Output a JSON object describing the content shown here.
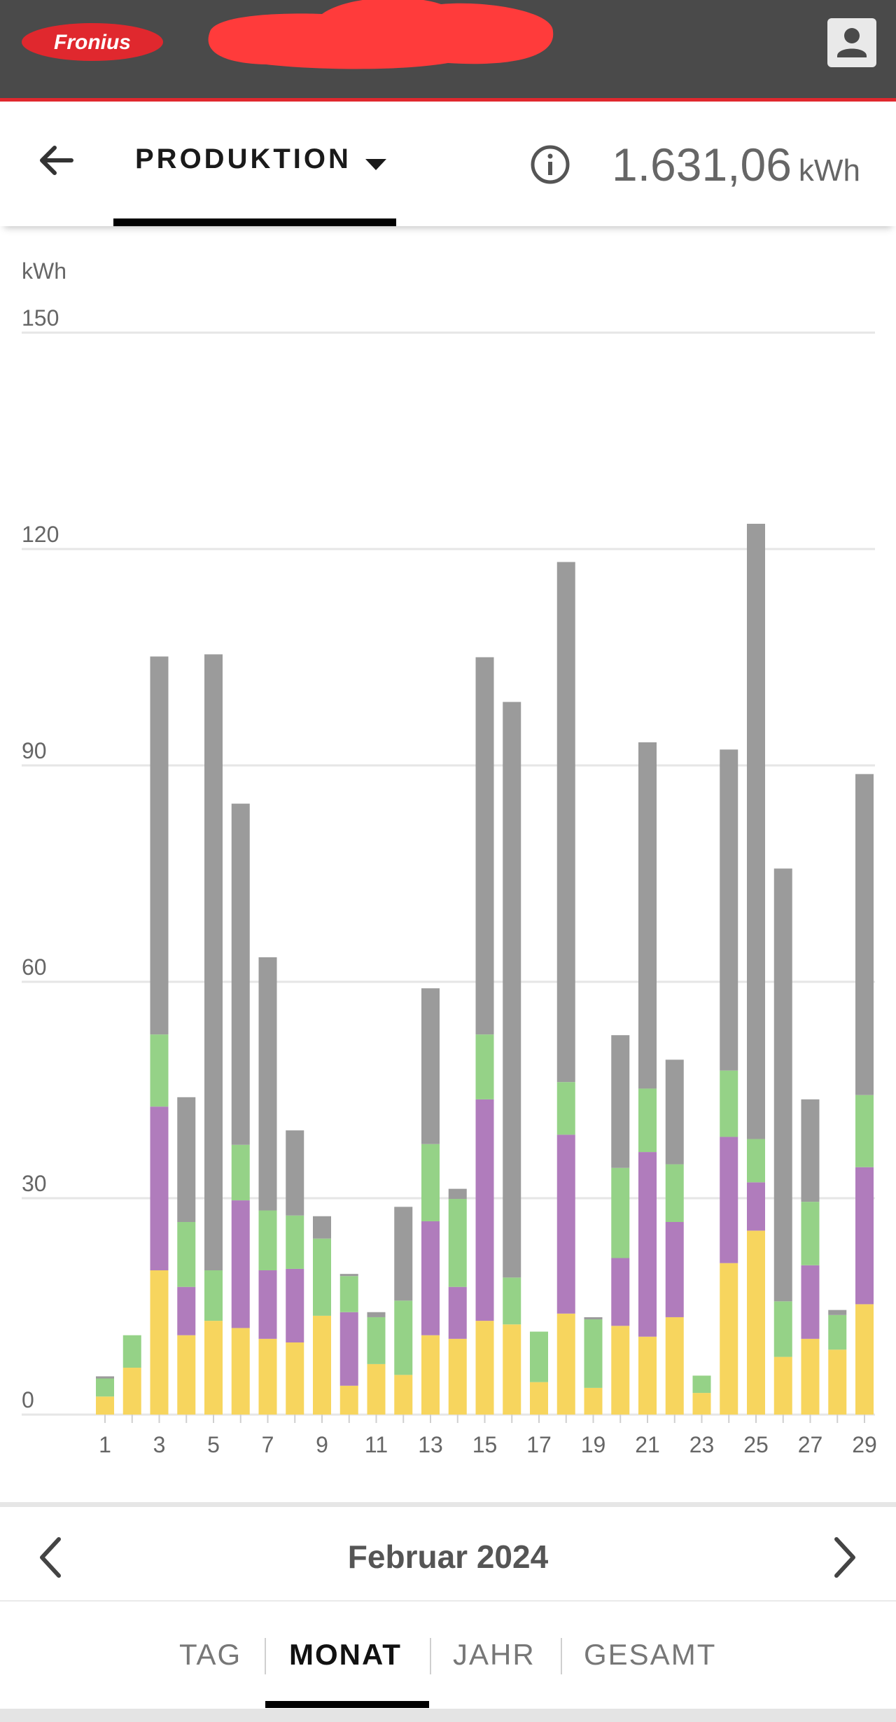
{
  "app": {
    "logo_text": "Fronius",
    "user_icon": "user-icon",
    "back_icon": "arrow-left-icon",
    "info_icon": "info-circle-icon"
  },
  "header": {
    "tab_label": "PRODUKTION",
    "dropdown_icon": "caret-down-icon",
    "total_value": "1.631,06",
    "total_unit": "kWh"
  },
  "chart_data": {
    "type": "bar",
    "stacked": true,
    "ylabel": "kWh",
    "ylim": [
      0,
      150
    ],
    "yticks": [
      0,
      30,
      60,
      90,
      120,
      150
    ],
    "categories": [
      "1",
      "2",
      "3",
      "4",
      "5",
      "6",
      "7",
      "8",
      "9",
      "10",
      "11",
      "12",
      "13",
      "14",
      "15",
      "16",
      "17",
      "18",
      "19",
      "20",
      "21",
      "22",
      "23",
      "24",
      "25",
      "26",
      "27",
      "28",
      "29"
    ],
    "xtick_labels": [
      "1",
      "3",
      "5",
      "7",
      "9",
      "11",
      "13",
      "15",
      "17",
      "19",
      "21",
      "23",
      "25",
      "27",
      "29"
    ],
    "grid": true,
    "series": [
      {
        "color": "#f7d55e",
        "values": [
          2.5,
          6.5,
          20,
          11,
          13,
          12,
          10.5,
          10,
          13.7,
          4,
          7,
          5.5,
          11,
          10.5,
          13,
          12.5,
          4.5,
          14,
          3.7,
          12.3,
          10.8,
          13.5,
          3,
          21,
          25.5,
          8,
          10.5,
          9,
          15.3
        ]
      },
      {
        "color": "#b07cbc",
        "values": [
          0,
          0,
          22.7,
          6.7,
          0,
          17.7,
          9.5,
          10.2,
          0,
          10.2,
          0,
          0,
          15.8,
          7.2,
          30.7,
          0,
          0,
          24.8,
          0,
          9.4,
          25.6,
          13.2,
          0,
          17.5,
          6.7,
          0,
          10.2,
          0,
          19
        ]
      },
      {
        "color": "#95d287",
        "values": [
          2.5,
          4.5,
          10,
          9,
          7,
          7.7,
          8.3,
          7.4,
          10.7,
          5,
          6.5,
          10.3,
          10.7,
          12.2,
          9,
          6.5,
          7,
          7.3,
          9.5,
          12.5,
          8.8,
          8,
          2.4,
          9.2,
          6,
          7.7,
          8.8,
          4.8,
          10
        ]
      },
      {
        "color": "#9b9b9b",
        "values": [
          0.3,
          0,
          52.4,
          17.3,
          85.4,
          47.3,
          35.1,
          11.8,
          3.1,
          0.3,
          0.7,
          13,
          21.6,
          1.4,
          52.3,
          79.8,
          0,
          72.1,
          0.3,
          18.4,
          48,
          14.5,
          0,
          44.5,
          85.3,
          60,
          14.2,
          0.7,
          44.5
        ]
      }
    ]
  },
  "footer": {
    "prev_icon": "chevron-left-icon",
    "next_icon": "chevron-right-icon",
    "month_label": "Februar 2024"
  },
  "period_tabs": [
    {
      "label": "TAG",
      "active": false
    },
    {
      "label": "MONAT",
      "active": true
    },
    {
      "label": "JAHR",
      "active": false
    },
    {
      "label": "GESAMT",
      "active": false
    }
  ]
}
